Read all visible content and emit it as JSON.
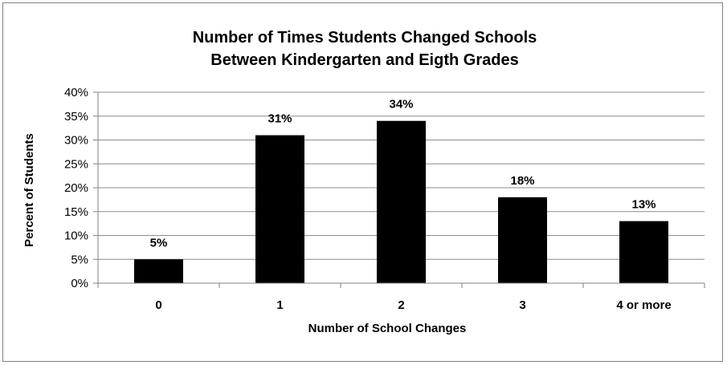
{
  "chart_data": {
    "type": "bar",
    "title_lines": [
      "Number of Times Students Changed Schools",
      "Between Kindergarten and Eigth Grades"
    ],
    "xlabel": "Number of School Changes",
    "ylabel": "Percent of Students",
    "categories": [
      "0",
      "1",
      "2",
      "3",
      "4 or more"
    ],
    "values": [
      5,
      31,
      34,
      18,
      13
    ],
    "data_labels": [
      "5%",
      "31%",
      "34%",
      "18%",
      "13%"
    ],
    "ylim": [
      0,
      40
    ],
    "y_ticks": [
      0,
      5,
      10,
      15,
      20,
      25,
      30,
      35,
      40
    ],
    "y_tick_labels": [
      "0%",
      "5%",
      "10%",
      "15%",
      "20%",
      "25%",
      "30%",
      "35%",
      "40%"
    ],
    "grid": true,
    "legend": "none",
    "bar_color": "#000000",
    "grid_color": "#8c8c8c"
  }
}
